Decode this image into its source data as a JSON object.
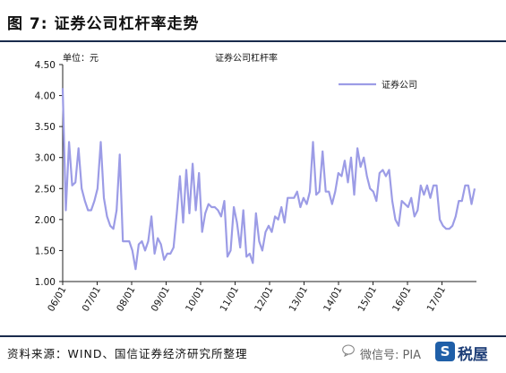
{
  "figure": {
    "title": "图 7:  证券公司杠杆率走势"
  },
  "footer": {
    "source": "资料来源：WIND、国信证券经济研究所整理",
    "watermark": "微信号: PIA",
    "logo_text": "税屋"
  },
  "colors": {
    "line": "#9c9ce6",
    "rule": "#1a2b4c",
    "axis": "#222222"
  },
  "chart_data": {
    "type": "line",
    "title": "证券公司杠杆率",
    "unit_label": "单位：元",
    "ylim": [
      1.0,
      4.5
    ],
    "yticks": [
      "1.00",
      "1.50",
      "2.00",
      "2.50",
      "3.00",
      "3.50",
      "4.00",
      "4.50"
    ],
    "xticks": [
      "06/01",
      "07/01",
      "08/01",
      "09/01",
      "10/01",
      "11/01",
      "12/01",
      "13/01",
      "14/01",
      "15/01",
      "16/01",
      "17/01"
    ],
    "legend": "top-right",
    "grid": false,
    "series": [
      {
        "name": "证券公司",
        "values": [
          4.12,
          2.15,
          3.25,
          2.55,
          2.6,
          3.15,
          2.5,
          2.3,
          2.15,
          2.15,
          2.3,
          2.5,
          3.25,
          2.35,
          2.05,
          1.9,
          1.85,
          2.15,
          3.05,
          1.65,
          1.65,
          1.65,
          1.5,
          1.2,
          1.6,
          1.65,
          1.5,
          1.65,
          2.05,
          1.45,
          1.7,
          1.6,
          1.35,
          1.45,
          1.45,
          1.55,
          2.1,
          2.7,
          1.95,
          2.8,
          2.1,
          2.9,
          2.15,
          2.75,
          1.8,
          2.1,
          2.25,
          2.2,
          2.2,
          2.15,
          2.05,
          2.3,
          1.4,
          1.5,
          2.2,
          1.95,
          1.55,
          2.15,
          1.4,
          1.45,
          1.3,
          2.1,
          1.65,
          1.5,
          1.8,
          1.9,
          1.8,
          2.05,
          2.0,
          2.2,
          1.95,
          2.35,
          2.35,
          2.35,
          2.45,
          2.2,
          2.35,
          2.25,
          2.45,
          3.25,
          2.4,
          2.45,
          3.1,
          2.45,
          2.45,
          2.25,
          2.45,
          2.75,
          2.7,
          2.95,
          2.6,
          3.0,
          2.4,
          3.15,
          2.85,
          3.0,
          2.7,
          2.5,
          2.45,
          2.3,
          2.75,
          2.8,
          2.7,
          2.8,
          2.3,
          2.0,
          1.9,
          2.3,
          2.25,
          2.2,
          2.35,
          2.05,
          2.15,
          2.55,
          2.4,
          2.55,
          2.35,
          2.55,
          2.55,
          2.0,
          1.9,
          1.85,
          1.85,
          1.9,
          2.05,
          2.3,
          2.3,
          2.55,
          2.55,
          2.25,
          2.5
        ]
      }
    ]
  }
}
